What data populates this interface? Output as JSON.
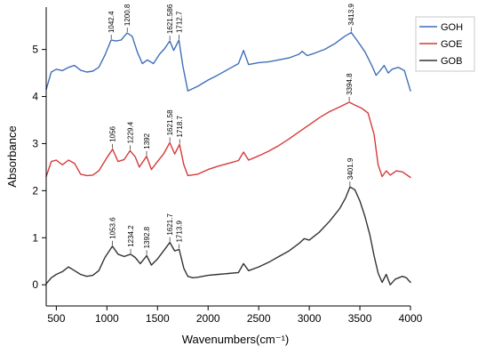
{
  "chart_data": {
    "type": "line",
    "xlabel": "Wavenumbers(cm⁻¹)",
    "ylabel": "Absorbance",
    "xlim": [
      400,
      4000
    ],
    "ylim": [
      -0.45,
      5.9
    ],
    "x_ticks": [
      500,
      1000,
      1500,
      2000,
      2500,
      3000,
      3500,
      4000
    ],
    "y_ticks": [
      0,
      1,
      2,
      3,
      4,
      5
    ],
    "grid": false,
    "legend_position": "top-right",
    "series": [
      {
        "name": "GOH",
        "color": "#3f6fb8",
        "points": [
          [
            400,
            4.15
          ],
          [
            450,
            4.52
          ],
          [
            500,
            4.58
          ],
          [
            560,
            4.55
          ],
          [
            620,
            4.62
          ],
          [
            680,
            4.66
          ],
          [
            740,
            4.56
          ],
          [
            800,
            4.52
          ],
          [
            860,
            4.54
          ],
          [
            920,
            4.62
          ],
          [
            980,
            4.88
          ],
          [
            1042,
            5.2
          ],
          [
            1090,
            5.18
          ],
          [
            1140,
            5.2
          ],
          [
            1200,
            5.35
          ],
          [
            1250,
            5.28
          ],
          [
            1300,
            4.95
          ],
          [
            1350,
            4.7
          ],
          [
            1400,
            4.78
          ],
          [
            1460,
            4.7
          ],
          [
            1520,
            4.9
          ],
          [
            1570,
            5.02
          ],
          [
            1621,
            5.18
          ],
          [
            1660,
            4.98
          ],
          [
            1712,
            5.2
          ],
          [
            1750,
            4.65
          ],
          [
            1800,
            4.12
          ],
          [
            1900,
            4.22
          ],
          [
            2000,
            4.35
          ],
          [
            2100,
            4.46
          ],
          [
            2200,
            4.58
          ],
          [
            2300,
            4.7
          ],
          [
            2350,
            4.98
          ],
          [
            2400,
            4.68
          ],
          [
            2500,
            4.72
          ],
          [
            2600,
            4.74
          ],
          [
            2700,
            4.78
          ],
          [
            2800,
            4.82
          ],
          [
            2900,
            4.9
          ],
          [
            2930,
            4.96
          ],
          [
            2980,
            4.87
          ],
          [
            3050,
            4.92
          ],
          [
            3150,
            5.0
          ],
          [
            3250,
            5.12
          ],
          [
            3350,
            5.28
          ],
          [
            3414,
            5.36
          ],
          [
            3470,
            5.2
          ],
          [
            3550,
            4.95
          ],
          [
            3620,
            4.65
          ],
          [
            3660,
            4.45
          ],
          [
            3700,
            4.55
          ],
          [
            3740,
            4.66
          ],
          [
            3780,
            4.5
          ],
          [
            3820,
            4.58
          ],
          [
            3880,
            4.62
          ],
          [
            3940,
            4.55
          ],
          [
            4000,
            4.12
          ]
        ]
      },
      {
        "name": "GOE",
        "color": "#d63a3a",
        "points": [
          [
            400,
            2.3
          ],
          [
            450,
            2.62
          ],
          [
            500,
            2.65
          ],
          [
            560,
            2.55
          ],
          [
            620,
            2.65
          ],
          [
            680,
            2.58
          ],
          [
            740,
            2.35
          ],
          [
            800,
            2.32
          ],
          [
            860,
            2.33
          ],
          [
            920,
            2.42
          ],
          [
            1000,
            2.7
          ],
          [
            1056,
            2.88
          ],
          [
            1110,
            2.62
          ],
          [
            1170,
            2.66
          ],
          [
            1229,
            2.85
          ],
          [
            1280,
            2.72
          ],
          [
            1320,
            2.5
          ],
          [
            1392,
            2.73
          ],
          [
            1440,
            2.45
          ],
          [
            1500,
            2.62
          ],
          [
            1560,
            2.78
          ],
          [
            1621,
            3.02
          ],
          [
            1670,
            2.78
          ],
          [
            1718,
            2.98
          ],
          [
            1760,
            2.55
          ],
          [
            1800,
            2.32
          ],
          [
            1900,
            2.35
          ],
          [
            2000,
            2.45
          ],
          [
            2100,
            2.52
          ],
          [
            2200,
            2.58
          ],
          [
            2300,
            2.64
          ],
          [
            2350,
            2.82
          ],
          [
            2400,
            2.65
          ],
          [
            2500,
            2.74
          ],
          [
            2600,
            2.84
          ],
          [
            2700,
            2.96
          ],
          [
            2800,
            3.1
          ],
          [
            2900,
            3.25
          ],
          [
            3000,
            3.4
          ],
          [
            3100,
            3.55
          ],
          [
            3200,
            3.68
          ],
          [
            3300,
            3.78
          ],
          [
            3395,
            3.88
          ],
          [
            3450,
            3.82
          ],
          [
            3520,
            3.75
          ],
          [
            3580,
            3.65
          ],
          [
            3640,
            3.2
          ],
          [
            3680,
            2.55
          ],
          [
            3720,
            2.3
          ],
          [
            3760,
            2.42
          ],
          [
            3800,
            2.33
          ],
          [
            3860,
            2.42
          ],
          [
            3920,
            2.4
          ],
          [
            4000,
            2.28
          ]
        ]
      },
      {
        "name": "GOB",
        "color": "#333333",
        "points": [
          [
            400,
            0.02
          ],
          [
            450,
            0.15
          ],
          [
            500,
            0.22
          ],
          [
            560,
            0.28
          ],
          [
            620,
            0.38
          ],
          [
            680,
            0.3
          ],
          [
            740,
            0.22
          ],
          [
            800,
            0.18
          ],
          [
            860,
            0.2
          ],
          [
            920,
            0.3
          ],
          [
            980,
            0.58
          ],
          [
            1054,
            0.82
          ],
          [
            1110,
            0.65
          ],
          [
            1170,
            0.6
          ],
          [
            1234,
            0.65
          ],
          [
            1280,
            0.58
          ],
          [
            1330,
            0.45
          ],
          [
            1393,
            0.62
          ],
          [
            1440,
            0.42
          ],
          [
            1500,
            0.55
          ],
          [
            1560,
            0.72
          ],
          [
            1622,
            0.9
          ],
          [
            1670,
            0.72
          ],
          [
            1714,
            0.75
          ],
          [
            1760,
            0.35
          ],
          [
            1800,
            0.18
          ],
          [
            1850,
            0.15
          ],
          [
            1900,
            0.16
          ],
          [
            2000,
            0.2
          ],
          [
            2100,
            0.22
          ],
          [
            2200,
            0.24
          ],
          [
            2300,
            0.26
          ],
          [
            2350,
            0.45
          ],
          [
            2400,
            0.3
          ],
          [
            2500,
            0.38
          ],
          [
            2600,
            0.48
          ],
          [
            2700,
            0.6
          ],
          [
            2800,
            0.72
          ],
          [
            2900,
            0.88
          ],
          [
            2950,
            0.98
          ],
          [
            3000,
            0.95
          ],
          [
            3100,
            1.12
          ],
          [
            3200,
            1.35
          ],
          [
            3300,
            1.62
          ],
          [
            3360,
            1.85
          ],
          [
            3402,
            2.08
          ],
          [
            3450,
            2.02
          ],
          [
            3500,
            1.78
          ],
          [
            3550,
            1.45
          ],
          [
            3600,
            1.05
          ],
          [
            3640,
            0.62
          ],
          [
            3680,
            0.25
          ],
          [
            3720,
            0.05
          ],
          [
            3760,
            0.22
          ],
          [
            3800,
            0.0
          ],
          [
            3850,
            0.12
          ],
          [
            3920,
            0.18
          ],
          [
            3960,
            0.15
          ],
          [
            4000,
            0.05
          ]
        ]
      }
    ],
    "annotations": [
      {
        "text": "1042.4",
        "x": 1042.4,
        "y": 5.2,
        "series": "GOH"
      },
      {
        "text": "1200.8",
        "x": 1200.8,
        "y": 5.35,
        "series": "GOH"
      },
      {
        "text": "1621.586",
        "x": 1621.586,
        "y": 5.18,
        "series": "GOH"
      },
      {
        "text": "1712.7",
        "x": 1712.7,
        "y": 5.2,
        "series": "GOH"
      },
      {
        "text": "3413.9",
        "x": 3413.9,
        "y": 5.36,
        "series": "GOH"
      },
      {
        "text": "1056",
        "x": 1056,
        "y": 2.88,
        "series": "GOE"
      },
      {
        "text": "1229.4",
        "x": 1229.4,
        "y": 2.85,
        "series": "GOE"
      },
      {
        "text": "1392",
        "x": 1392,
        "y": 2.73,
        "series": "GOE"
      },
      {
        "text": "1621.58",
        "x": 1621.58,
        "y": 3.02,
        "series": "GOE"
      },
      {
        "text": "1718.7",
        "x": 1718.7,
        "y": 2.98,
        "series": "GOE"
      },
      {
        "text": "3394.8",
        "x": 3394.8,
        "y": 3.88,
        "series": "GOE"
      },
      {
        "text": "1053.6",
        "x": 1053.6,
        "y": 0.82,
        "series": "GOB"
      },
      {
        "text": "1234.2",
        "x": 1234.2,
        "y": 0.65,
        "series": "GOB"
      },
      {
        "text": "1392.8",
        "x": 1392.8,
        "y": 0.62,
        "series": "GOB"
      },
      {
        "text": "1621.7",
        "x": 1621.7,
        "y": 0.9,
        "series": "GOB"
      },
      {
        "text": "1713.9",
        "x": 1713.9,
        "y": 0.75,
        "series": "GOB"
      },
      {
        "text": "3401.9",
        "x": 3401.9,
        "y": 2.08,
        "series": "GOB"
      }
    ]
  }
}
